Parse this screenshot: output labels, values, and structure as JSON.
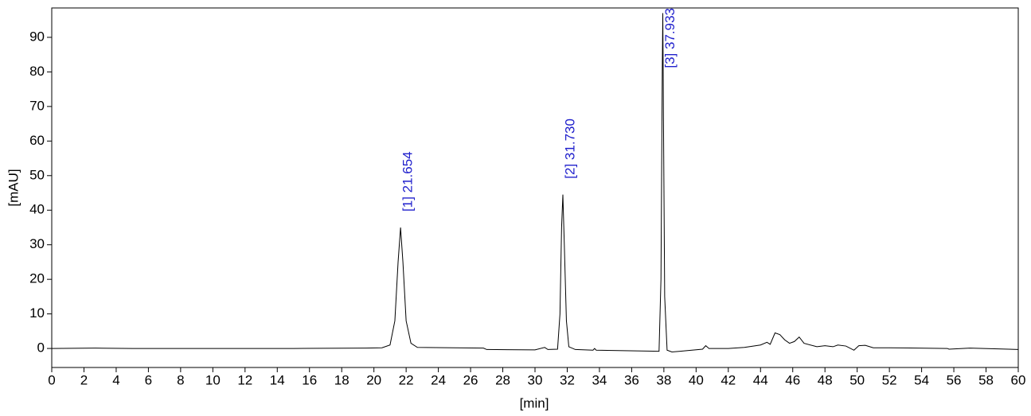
{
  "chart_data": {
    "type": "line",
    "xlabel": "[min]",
    "ylabel": "[mAU]",
    "xlim": [
      0,
      60
    ],
    "ylim": [
      -5.5,
      98.5
    ],
    "xticks": [
      0,
      2,
      4,
      6,
      8,
      10,
      12,
      14,
      16,
      18,
      20,
      22,
      24,
      26,
      28,
      30,
      32,
      34,
      36,
      38,
      40,
      42,
      44,
      46,
      48,
      50,
      52,
      54,
      56,
      58,
      60
    ],
    "yticks": [
      0,
      10,
      20,
      30,
      40,
      50,
      60,
      70,
      80,
      90
    ],
    "grid": false,
    "color": "#000000",
    "x": [
      0,
      2.7,
      5,
      10,
      15,
      19.5,
      20.5,
      21,
      21.3,
      21.5,
      21.654,
      21.8,
      22,
      22.3,
      22.7,
      25,
      26.8,
      27,
      30,
      30.6,
      30.8,
      31.4,
      31.55,
      31.65,
      31.73,
      31.82,
      31.95,
      32.1,
      32.5,
      33.6,
      33.7,
      33.8,
      37.7,
      37.82,
      37.9,
      37.933,
      37.97,
      38.05,
      38.2,
      38.5,
      39,
      40.4,
      40.6,
      40.8,
      42,
      43,
      44,
      44.4,
      44.6,
      44.9,
      45.2,
      45.5,
      45.8,
      46.1,
      46.4,
      46.7,
      47.5,
      48,
      48.5,
      48.8,
      49.3,
      49.8,
      50.1,
      50.5,
      51,
      52,
      55.6,
      55.7,
      57,
      60
    ],
    "values": [
      0,
      0.1,
      0,
      0,
      0,
      0.1,
      0.2,
      1,
      8,
      25,
      35,
      25,
      8,
      1.5,
      0.3,
      0.2,
      0.1,
      -0.3,
      -0.4,
      0.3,
      -0.3,
      -0.2,
      10,
      35,
      44.5,
      30,
      8,
      0.5,
      -0.3,
      -0.5,
      0,
      -0.5,
      -0.8,
      20,
      80,
      97,
      70,
      15,
      -0.5,
      -1,
      -0.8,
      -0.2,
      0.8,
      0,
      0,
      0.3,
      1,
      1.8,
      1.2,
      4.5,
      4,
      2.5,
      1.5,
      2,
      3.3,
      1.5,
      0.5,
      0.8,
      0.5,
      1,
      0.7,
      -0.5,
      0.8,
      0.9,
      0.2,
      0.2,
      0,
      -0.2,
      0.1,
      -0.3
    ],
    "annotations": [
      {
        "text": "[1]  21.654",
        "x": 21.654,
        "y": 35
      },
      {
        "text": "[2]  31.730",
        "x": 31.73,
        "y": 44.5
      },
      {
        "text": "[3]  37.933",
        "x": 37.933,
        "y": 97
      }
    ]
  }
}
